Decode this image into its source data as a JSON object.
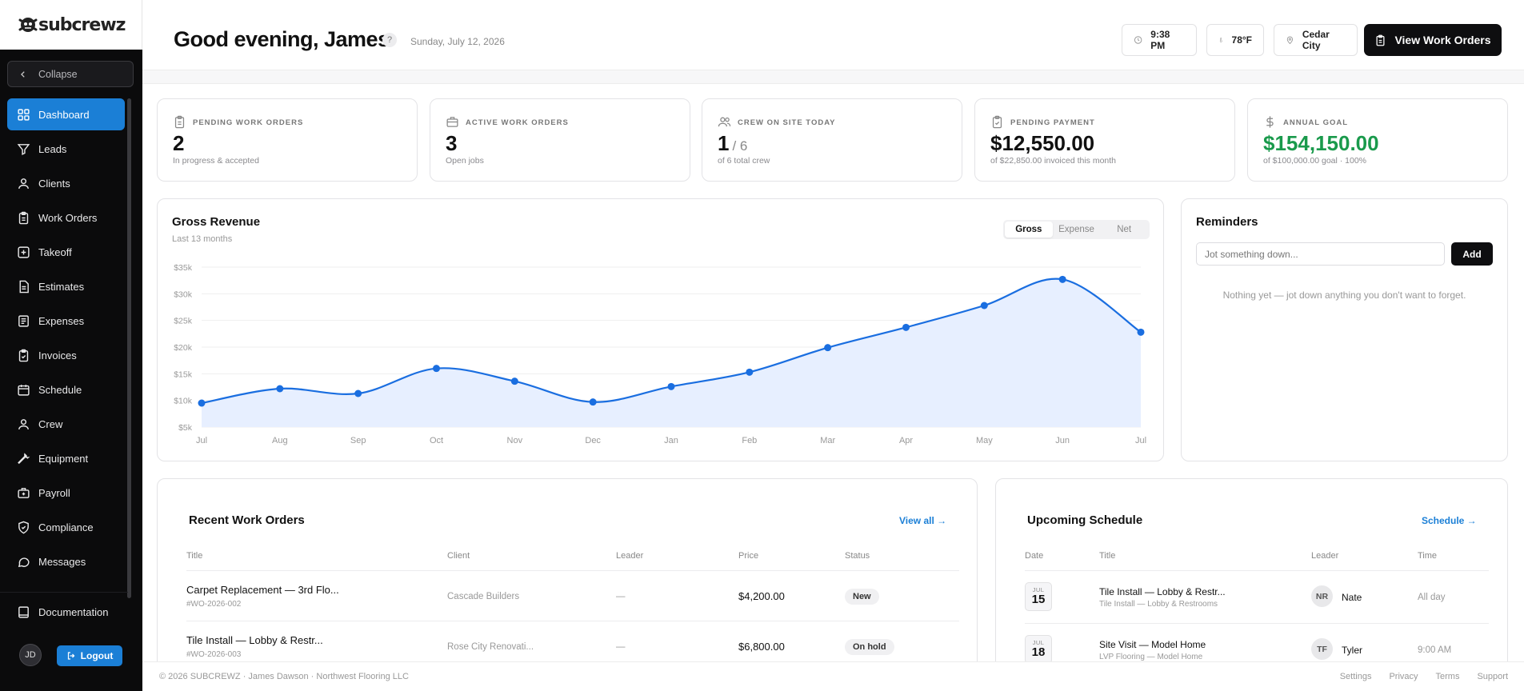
{
  "brand": {
    "name": "subcrewz"
  },
  "sidebar": {
    "collapse_label": "Collapse",
    "items": [
      {
        "label": "Dashboard",
        "icon": "grid-icon",
        "active": true
      },
      {
        "label": "Leads",
        "icon": "funnel-icon"
      },
      {
        "label": "Clients",
        "icon": "user-icon"
      },
      {
        "label": "Work Orders",
        "icon": "clipboard-icon"
      },
      {
        "label": "Takeoff",
        "icon": "plus-square-icon"
      },
      {
        "label": "Estimates",
        "icon": "document-icon"
      },
      {
        "label": "Expenses",
        "icon": "receipt-icon"
      },
      {
        "label": "Invoices",
        "icon": "clipboard-check-icon"
      },
      {
        "label": "Schedule",
        "icon": "calendar-icon"
      },
      {
        "label": "Crew",
        "icon": "users-icon"
      },
      {
        "label": "Equipment",
        "icon": "wrench-icon"
      },
      {
        "label": "Payroll",
        "icon": "briefcase-icon"
      },
      {
        "label": "Compliance",
        "icon": "shield-check-icon"
      },
      {
        "label": "Messages",
        "icon": "chat-icon"
      }
    ],
    "documentation_label": "Documentation",
    "user_initials": "JD",
    "logout_label": "Logout"
  },
  "header": {
    "greeting": "Good evening, James",
    "help_label": "?",
    "date": "Sunday, July 12, 2026",
    "time": "9:38 PM",
    "temperature": "78°F",
    "location": "Cedar City",
    "view_work_orders_label": "View Work Orders"
  },
  "stats": [
    {
      "label": "PENDING WORK ORDERS",
      "value": "2",
      "value_suffix": "",
      "sub": "In progress & accepted",
      "icon": "clipboard-icon",
      "accent": false
    },
    {
      "label": "ACTIVE WORK ORDERS",
      "value": "3",
      "value_suffix": "",
      "sub": "Open jobs",
      "icon": "briefcase-icon",
      "accent": false
    },
    {
      "label": "CREW ON SITE TODAY",
      "value": "1",
      "value_suffix": "/ 6",
      "sub": "of 6 total crew",
      "icon": "users-icon",
      "accent": false
    },
    {
      "label": "PENDING PAYMENT",
      "value": "$12,550.00",
      "value_suffix": "",
      "sub": "of $22,850.00 invoiced this month",
      "icon": "clipboard-check-icon",
      "accent": false
    },
    {
      "label": "ANNUAL GOAL",
      "value": "$154,150.00",
      "value_suffix": "",
      "sub": "of $100,000.00 goal · 100%",
      "icon": "dollar-icon",
      "accent": true
    }
  ],
  "revenue": {
    "title": "Gross Revenue",
    "subtitle": "Last 13 months",
    "tabs": [
      "Gross",
      "Expense",
      "Net"
    ],
    "active_tab": "Gross"
  },
  "chart_data": {
    "type": "area",
    "title": "Gross Revenue",
    "subtitle": "Last 13 months",
    "categories": [
      "Jul",
      "Aug",
      "Sep",
      "Oct",
      "Nov",
      "Dec",
      "Jan",
      "Feb",
      "Mar",
      "Apr",
      "May",
      "Jun",
      "Jul"
    ],
    "values": [
      9500,
      12200,
      11300,
      16000,
      13600,
      9700,
      12600,
      15300,
      19900,
      23700,
      27800,
      32700,
      22800
    ],
    "ylim": [
      5000,
      35000
    ],
    "yticks": [
      "$35k",
      "$30k",
      "$25k",
      "$20k",
      "$15k",
      "$10k",
      "$5k"
    ],
    "ytick_values": [
      35000,
      30000,
      25000,
      20000,
      15000,
      10000,
      5000
    ],
    "grid": true,
    "color": "#1a6ee0",
    "fill": "#e7efff"
  },
  "reminders": {
    "title": "Reminders",
    "placeholder": "Jot something down...",
    "add_label": "Add",
    "empty": "Nothing yet — jot down anything you don't want to forget."
  },
  "recent_work_orders": {
    "title": "Recent Work Orders",
    "view_all": "View all →",
    "columns": [
      "Title",
      "Client",
      "Leader",
      "Price",
      "Status"
    ],
    "rows": [
      {
        "title": "Carpet Replacement — 3rd Flo...",
        "id": "#WO-2026-002",
        "client": "Cascade Builders",
        "leader": "—",
        "price": "$4,200.00",
        "status": "New"
      },
      {
        "title": "Tile Install — Lobby & Restr...",
        "id": "#WO-2026-003",
        "client": "Rose City Renovati...",
        "leader": "—",
        "price": "$6,800.00",
        "status": "On hold"
      }
    ]
  },
  "upcoming_schedule": {
    "title": "Upcoming Schedule",
    "link": "Schedule →",
    "columns": [
      "Date",
      "Title",
      "Leader",
      "Time"
    ],
    "rows": [
      {
        "month": "JUL",
        "day": "15",
        "title": "Tile Install — Lobby & Restr...",
        "sub": "Tile Install — Lobby & Restrooms",
        "initials": "NR",
        "leader": "Nate",
        "time": "All day"
      },
      {
        "month": "JUL",
        "day": "18",
        "title": "Site Visit — Model Home",
        "sub": "LVP Flooring — Model Home",
        "initials": "TF",
        "leader": "Tyler",
        "time": "9:00 AM"
      }
    ]
  },
  "footer": {
    "copyright": "© 2026 SUBCREWZ · James Dawson · Northwest Flooring LLC",
    "links": [
      "Settings",
      "Privacy",
      "Terms",
      "Support"
    ]
  }
}
